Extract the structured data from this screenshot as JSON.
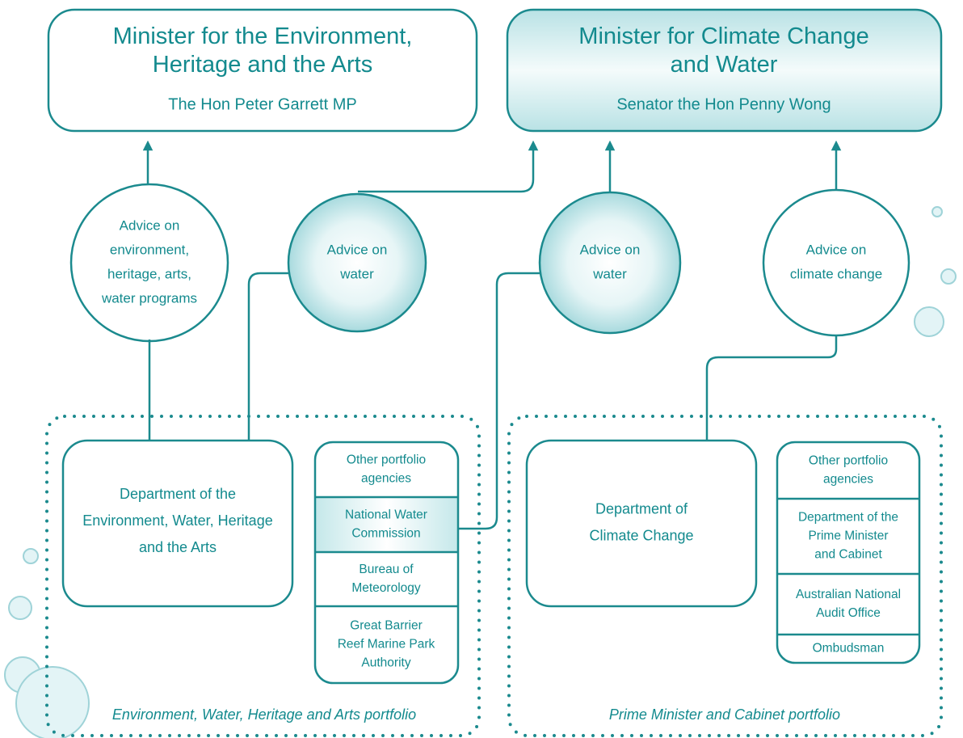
{
  "ministers": [
    {
      "title": [
        "Minister for the Environment,",
        "Heritage and the Arts"
      ],
      "name": "The Hon Peter Garrett MP"
    },
    {
      "title": [
        "Minister for Climate Change",
        "and Water"
      ],
      "name": "Senator the Hon Penny Wong"
    }
  ],
  "advice": [
    [
      "Advice on",
      "environment,",
      "heritage, arts,",
      "water programs"
    ],
    [
      "Advice on",
      "water"
    ],
    [
      "Advice on",
      "water"
    ],
    [
      "Advice on",
      "climate change"
    ]
  ],
  "portfolios": [
    {
      "department": [
        "Department of the",
        "Environment, Water, Heritage",
        "and the Arts"
      ],
      "agencies": [
        [
          "Other portfolio",
          "agencies"
        ],
        [
          "National Water",
          "Commission"
        ],
        [
          "Bureau of",
          "Meteorology"
        ],
        [
          "Great Barrier",
          "Reef Marine Park",
          "Authority"
        ]
      ],
      "label": "Environment, Water, Heritage and Arts portfolio"
    },
    {
      "department": [
        "Department of",
        "Climate Change"
      ],
      "agencies": [
        [
          "Other portfolio",
          "agencies"
        ],
        [
          "Department of the",
          "Prime Minister",
          "and Cabinet"
        ],
        [
          "Australian National",
          "Audit Office"
        ],
        [
          "Ombudsman"
        ]
      ],
      "label": "Prime Minister and Cabinet portfolio"
    }
  ]
}
